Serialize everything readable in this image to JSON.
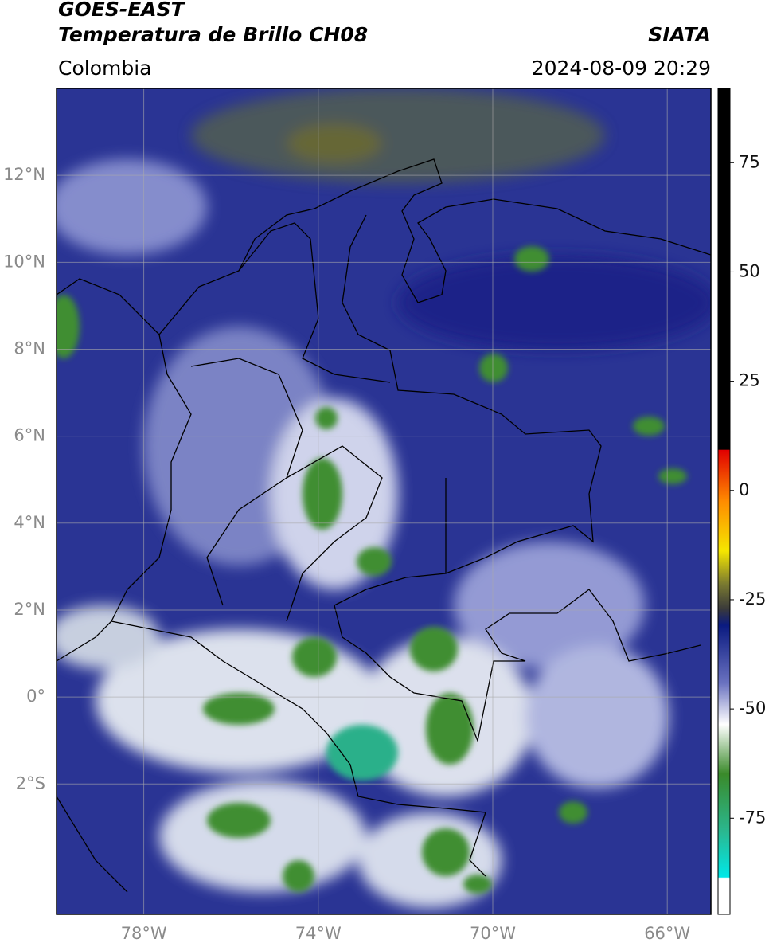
{
  "header": {
    "title_line1": "GOES-EAST",
    "title_line2": "Temperatura de Brillo CH08",
    "source": "SIATA",
    "region": "Colombia",
    "timestamp": "2024-08-09 20:29"
  },
  "map": {
    "xlim": [
      -80,
      -65
    ],
    "ylim": [
      -5,
      14
    ],
    "xticks": [
      {
        "value": -78,
        "label": "78°W"
      },
      {
        "value": -74,
        "label": "74°W"
      },
      {
        "value": -70,
        "label": "70°W"
      },
      {
        "value": -66,
        "label": "66°W"
      }
    ],
    "yticks": [
      {
        "value": 12,
        "label": "12°N"
      },
      {
        "value": 10,
        "label": "10°N"
      },
      {
        "value": 8,
        "label": "8°N"
      },
      {
        "value": 6,
        "label": "6°N"
      },
      {
        "value": 4,
        "label": "4°N"
      },
      {
        "value": 2,
        "label": "2°N"
      },
      {
        "value": 0,
        "label": "0°"
      },
      {
        "value": -2,
        "label": "2°S"
      }
    ],
    "grid": true
  },
  "colorbar": {
    "lim": [
      -97,
      92
    ],
    "ticks": [
      75,
      50,
      25,
      0,
      -25,
      -50,
      -75
    ]
  }
}
